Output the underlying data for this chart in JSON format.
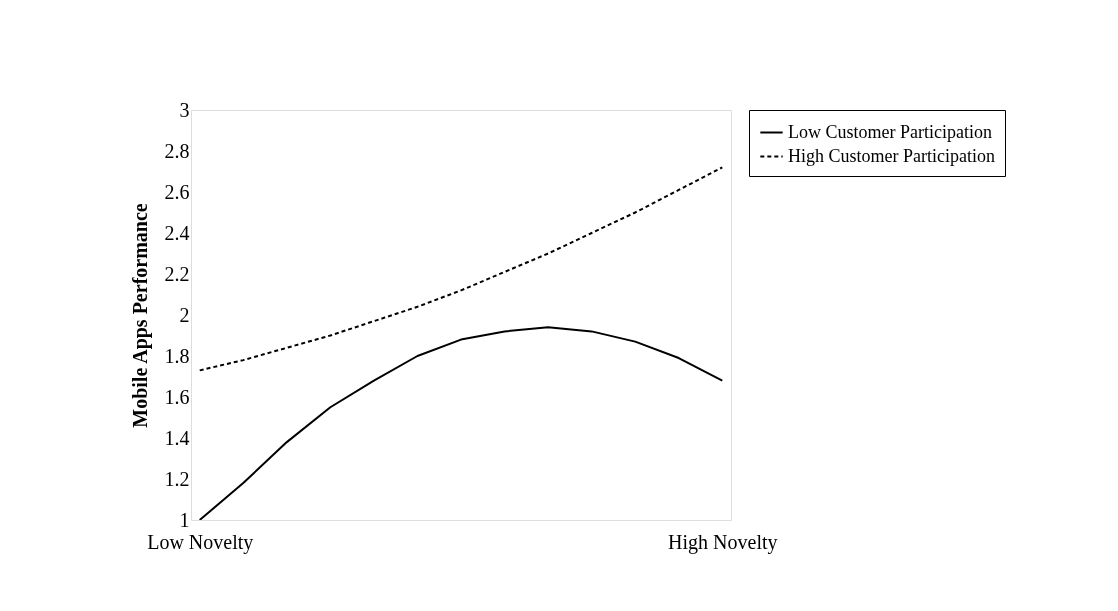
{
  "chart_data": {
    "type": "line",
    "ylabel": "Mobile Apps Performance",
    "categories": [
      "Low Novelty",
      null,
      null,
      null,
      null,
      null,
      null,
      null,
      null,
      null,
      null,
      null,
      "High Novelty"
    ],
    "series": [
      {
        "name": "Low Customer Participation",
        "color": "#000000",
        "line_style": "solid",
        "values": [
          1.0,
          1.18,
          1.38,
          1.55,
          1.68,
          1.8,
          1.88,
          1.92,
          1.94,
          1.92,
          1.87,
          1.79,
          1.68
        ]
      },
      {
        "name": "High Customer Participation",
        "color": "#000000",
        "line_style": "dashed",
        "values": [
          1.73,
          1.78,
          1.84,
          1.9,
          1.97,
          2.04,
          2.12,
          2.21,
          2.3,
          2.4,
          2.5,
          2.61,
          2.72
        ]
      }
    ],
    "ylim": [
      1,
      3
    ],
    "yticks": [
      1,
      1.2,
      1.4,
      1.6,
      1.8,
      2,
      2.2,
      2.4,
      2.6,
      2.8,
      3
    ],
    "grid": false,
    "legend": "right",
    "marker": "none"
  }
}
